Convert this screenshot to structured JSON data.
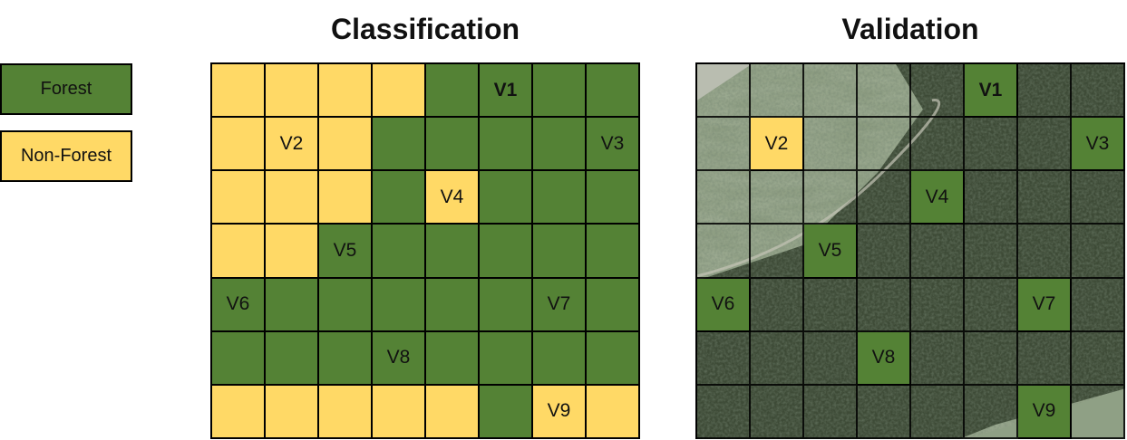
{
  "legend": {
    "forest_label": "Forest",
    "nonforest_label": "Non-Forest"
  },
  "titles": {
    "classification": "Classification",
    "validation": "Validation"
  },
  "colors": {
    "forest": "#548235",
    "nonforest": "#ffd966",
    "border": "#000000"
  },
  "classification": {
    "rows": [
      [
        "N",
        "N",
        "N",
        "N",
        "F",
        "F",
        "F",
        "F"
      ],
      [
        "N",
        "N",
        "N",
        "F",
        "F",
        "F",
        "F",
        "F"
      ],
      [
        "N",
        "N",
        "N",
        "F",
        "N",
        "F",
        "F",
        "F"
      ],
      [
        "N",
        "N",
        "F",
        "F",
        "F",
        "F",
        "F",
        "F"
      ],
      [
        "F",
        "F",
        "F",
        "F",
        "F",
        "F",
        "F",
        "F"
      ],
      [
        "F",
        "F",
        "F",
        "F",
        "F",
        "F",
        "F",
        "F"
      ],
      [
        "N",
        "N",
        "N",
        "N",
        "N",
        "F",
        "N",
        "N"
      ]
    ]
  },
  "validation_points": [
    {
      "label": "V1",
      "row": 0,
      "col": 5,
      "class": "F",
      "bold": true
    },
    {
      "label": "V2",
      "row": 1,
      "col": 1,
      "class": "N",
      "bold": false
    },
    {
      "label": "V3",
      "row": 1,
      "col": 7,
      "class": "F",
      "bold": false
    },
    {
      "label": "V4",
      "row": 2,
      "col": 4,
      "class": "N",
      "validated_class": "F",
      "bold": false
    },
    {
      "label": "V5",
      "row": 3,
      "col": 2,
      "class": "F",
      "bold": false
    },
    {
      "label": "V6",
      "row": 4,
      "col": 0,
      "class": "F",
      "bold": false
    },
    {
      "label": "V7",
      "row": 4,
      "col": 6,
      "class": "F",
      "bold": false
    },
    {
      "label": "V8",
      "row": 5,
      "col": 3,
      "class": "F",
      "bold": false
    },
    {
      "label": "V9",
      "row": 6,
      "col": 6,
      "class": "N",
      "validated_class": "F",
      "bold": false
    }
  ]
}
